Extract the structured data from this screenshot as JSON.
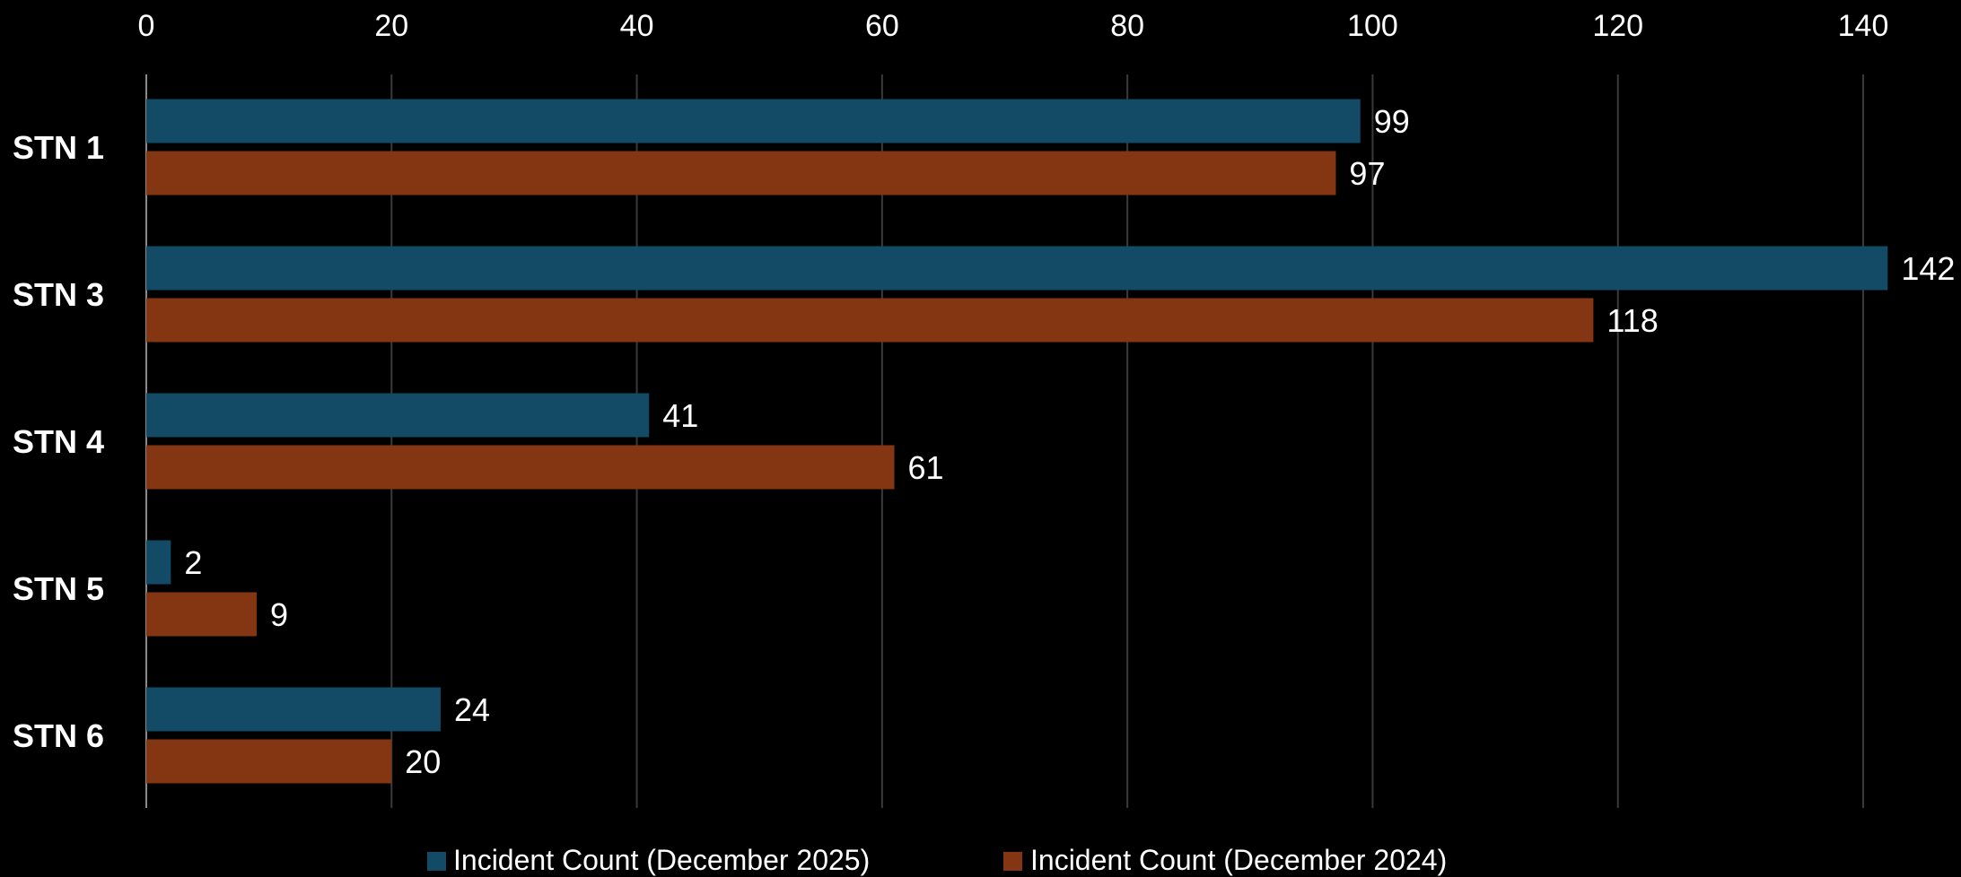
{
  "chart_data": {
    "type": "bar",
    "orientation": "horizontal",
    "categories": [
      "STN 1",
      "STN 3",
      "STN 4",
      "STN 5",
      "STN 6"
    ],
    "series": [
      {
        "name": "Incident Count (December 2025)",
        "color": "#134a65",
        "values": [
          99,
          142,
          41,
          2,
          24
        ]
      },
      {
        "name": "Incident Count (December 2024)",
        "color": "#843613",
        "values": [
          97,
          118,
          61,
          9,
          20
        ]
      }
    ],
    "xlim": [
      0,
      140
    ],
    "ticks": [
      0,
      20,
      40,
      60,
      80,
      100,
      120,
      140
    ],
    "tick_labels": [
      "0",
      "20",
      "40",
      "60",
      "80",
      "100",
      "120",
      "140"
    ],
    "x_axis_position": "top",
    "grid": true,
    "legend": "bottom",
    "background": "#000000"
  }
}
